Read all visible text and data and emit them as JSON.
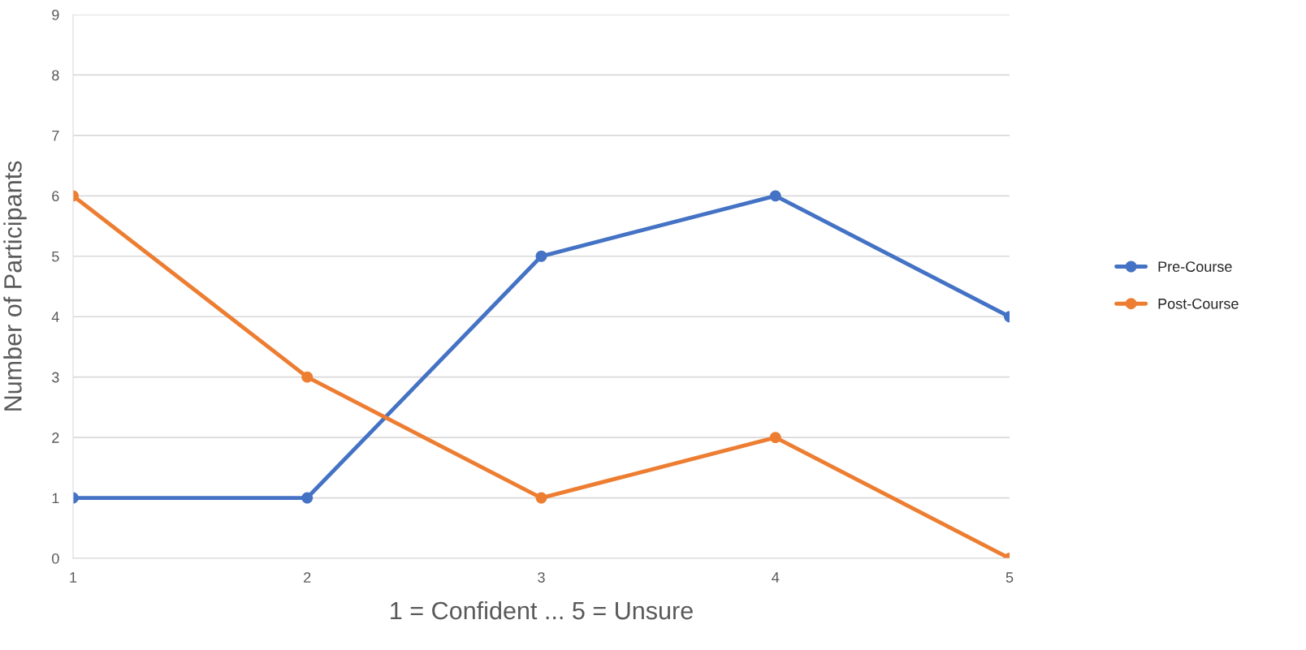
{
  "chart_data": {
    "type": "line",
    "xlabel": "1 = Confident ... 5 = Unsure",
    "ylabel": "Number of Participants",
    "categories": [
      "1",
      "2",
      "3",
      "4",
      "5"
    ],
    "series": [
      {
        "name": "Pre-Course",
        "color": "#4472c4",
        "values": [
          1,
          1,
          5,
          6,
          4
        ]
      },
      {
        "name": "Post-Course",
        "color": "#ed7d31",
        "values": [
          6,
          3,
          1,
          2,
          0
        ]
      }
    ],
    "ylim": [
      0,
      9
    ],
    "yticks": [
      0,
      1,
      2,
      3,
      4,
      5,
      6,
      7,
      8,
      9
    ],
    "grid": "y",
    "legend": "right",
    "marker": "circle",
    "line_style": "solid"
  }
}
